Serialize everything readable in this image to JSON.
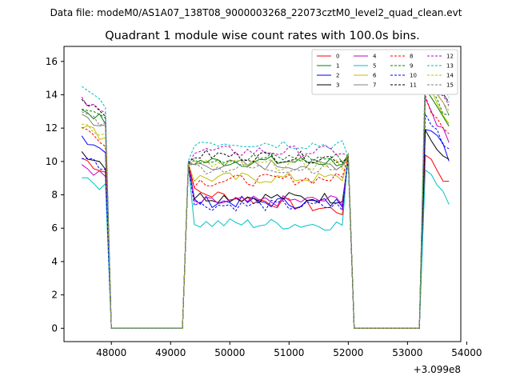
{
  "chart_data": {
    "type": "line",
    "suptitle": "Data file: modeM0/AS1A07_138T08_9000003268_22073cztM0_level2_quad_clean.evt",
    "title": "Quadrant 1 module wise count rates with 100.0s bins.",
    "xlabel": "",
    "ylabel": "",
    "x_offset_label": "+3.099e8",
    "xlim": [
      47200,
      53900
    ],
    "ylim": [
      -0.8,
      16.9
    ],
    "xticks": [
      48000,
      49000,
      50000,
      51000,
      52000,
      53000,
      54000
    ],
    "yticks": [
      0,
      2,
      4,
      6,
      8,
      10,
      12,
      14,
      16
    ],
    "grid": false,
    "legend_position": "top-right",
    "segments": [
      {
        "x_start": 47500,
        "x_end": 47900
      },
      {
        "x_start": 49300,
        "x_end": 52000
      },
      {
        "x_start": 53300,
        "x_end": 53700
      }
    ],
    "gaps": [
      {
        "x_start": 48000,
        "x_end": 49200
      },
      {
        "x_start": 52100,
        "x_end": 53200
      }
    ],
    "series": [
      {
        "name": "0",
        "color": "#ff0000",
        "dash": "solid",
        "levels": [
          10.2,
          8.2,
          7.0,
          10.6
        ]
      },
      {
        "name": "1",
        "color": "#008000",
        "dash": "solid",
        "levels": [
          13.2,
          10.0,
          10.0,
          14.0
        ]
      },
      {
        "name": "2",
        "color": "#0000ff",
        "dash": "solid",
        "levels": [
          11.5,
          7.6,
          7.5,
          12.3
        ]
      },
      {
        "name": "3",
        "color": "#000000",
        "dash": "solid",
        "levels": [
          10.6,
          7.9,
          7.8,
          11.8
        ]
      },
      {
        "name": "4",
        "color": "#c000c0",
        "dash": "solid",
        "levels": [
          9.8,
          7.5,
          7.7,
          13.4
        ]
      },
      {
        "name": "5",
        "color": "#00c0c0",
        "dash": "solid",
        "levels": [
          9.2,
          6.3,
          6.2,
          9.8
        ]
      },
      {
        "name": "6",
        "color": "#c0c000",
        "dash": "solid",
        "levels": [
          12.2,
          9.0,
          9.0,
          14.4
        ]
      },
      {
        "name": "7",
        "color": "#808080",
        "dash": "solid",
        "levels": [
          12.8,
          9.8,
          9.8,
          15.0
        ]
      },
      {
        "name": "8",
        "color": "#ff0000",
        "dash": "dashed",
        "levels": [
          12.0,
          8.8,
          9.0,
          13.8
        ]
      },
      {
        "name": "9",
        "color": "#008000",
        "dash": "dashed",
        "levels": [
          13.4,
          10.2,
          10.2,
          14.6
        ]
      },
      {
        "name": "10",
        "color": "#0000ff",
        "dash": "dashed",
        "levels": [
          10.4,
          7.4,
          7.3,
          12.8
        ]
      },
      {
        "name": "11",
        "color": "#000000",
        "dash": "dashed",
        "levels": [
          13.8,
          10.4,
          10.2,
          15.4
        ]
      },
      {
        "name": "12",
        "color": "#c000c0",
        "dash": "dashed",
        "levels": [
          13.6,
          10.6,
          10.6,
          15.2
        ]
      },
      {
        "name": "13",
        "color": "#00c0c0",
        "dash": "dashed",
        "levels": [
          14.3,
          11.2,
          11.0,
          15.8
        ]
      },
      {
        "name": "14",
        "color": "#c0c000",
        "dash": "dashed",
        "levels": [
          12.4,
          9.8,
          9.8,
          14.8
        ]
      },
      {
        "name": "15",
        "color": "#808080",
        "dash": "dashed",
        "levels": [
          13.0,
          9.6,
          9.6,
          15.6
        ]
      }
    ]
  }
}
